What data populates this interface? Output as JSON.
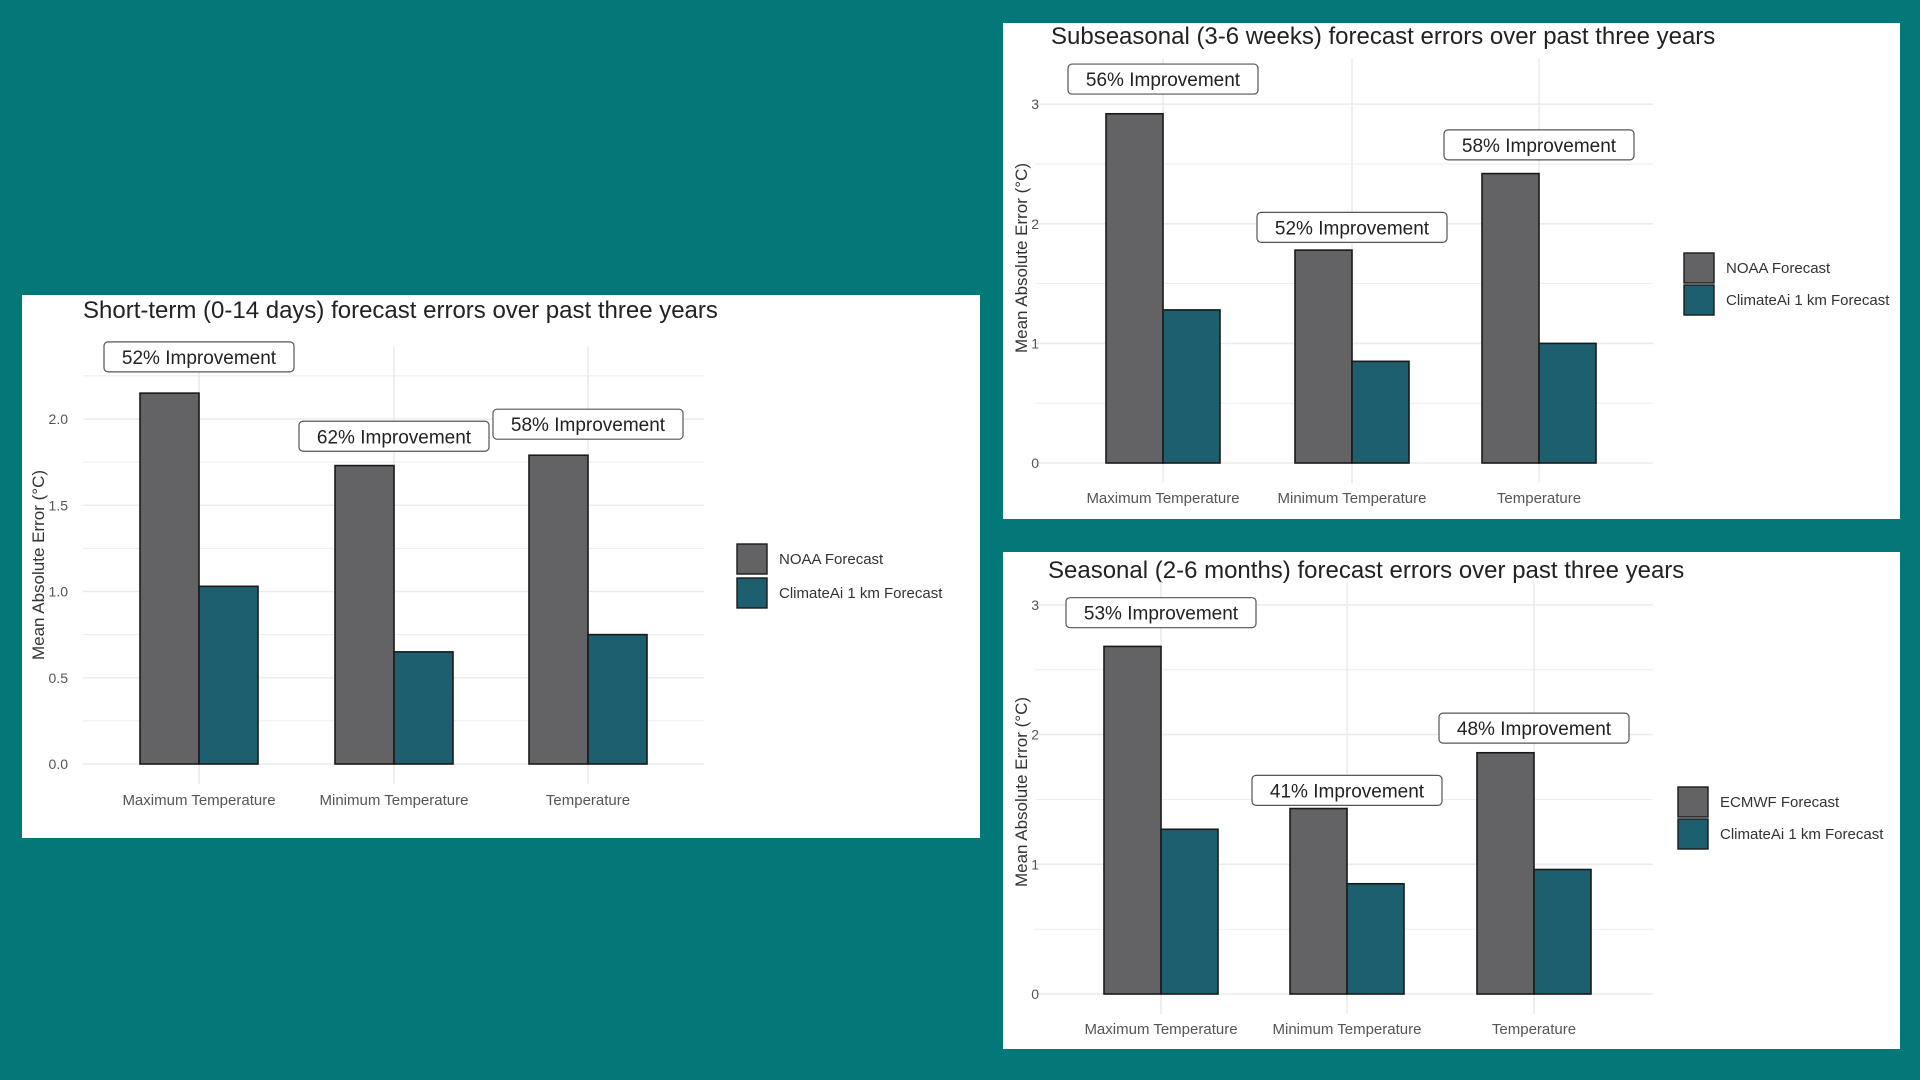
{
  "colors": {
    "background": "#037878",
    "gray_series": "#636366",
    "teal_series": "#1d5f6e",
    "grid": "#ebebeb"
  },
  "chart_data": [
    {
      "type": "bar",
      "title": "Short-term (0-14 days) forecast errors over past three years",
      "ylabel": "Mean Absolute Error (°C)",
      "xlabel": "",
      "categories": [
        "Maximum Temperature",
        "Minimum Temperature",
        "Temperature"
      ],
      "series": [
        {
          "name": "NOAA Forecast",
          "values": [
            2.15,
            1.73,
            1.79
          ]
        },
        {
          "name": "ClimateAi 1 km Forecast",
          "values": [
            1.03,
            0.65,
            0.75
          ]
        }
      ],
      "yticks": [
        0.0,
        0.5,
        1.0,
        1.5,
        2.0
      ],
      "ytick_labels": [
        "0.0",
        "0.5",
        "1.0",
        "1.5",
        "2.0"
      ],
      "ylim": [
        0,
        2.36
      ],
      "grid": true,
      "legend": "right",
      "annotations": [
        {
          "text": "52% Improvement",
          "category": "Maximum Temperature",
          "y": 2.36
        },
        {
          "text": "62% Improvement",
          "category": "Minimum Temperature",
          "y": 1.9
        },
        {
          "text": "58% Improvement",
          "category": "Temperature",
          "y": 1.97
        }
      ]
    },
    {
      "type": "bar",
      "title": "Subseasonal (3-6 weeks) forecast errors over past three years",
      "ylabel": "Mean Absolute Error (°C)",
      "xlabel": "",
      "categories": [
        "Maximum Temperature",
        "Minimum Temperature",
        "Temperature"
      ],
      "series": [
        {
          "name": "NOAA Forecast",
          "values": [
            2.92,
            1.78,
            2.42
          ]
        },
        {
          "name": "ClimateAi 1 km Forecast",
          "values": [
            1.28,
            0.85,
            1.0
          ]
        }
      ],
      "yticks": [
        0,
        1,
        2,
        3
      ],
      "ytick_labels": [
        "0",
        "1",
        "2",
        "3"
      ],
      "ylim": [
        0,
        3.3
      ],
      "grid": true,
      "legend": "right",
      "annotations": [
        {
          "text": "56% Improvement",
          "category": "Maximum Temperature",
          "y": 3.21
        },
        {
          "text": "52% Improvement",
          "category": "Minimum Temperature",
          "y": 1.97
        },
        {
          "text": "58% Improvement",
          "category": "Temperature",
          "y": 2.66
        }
      ]
    },
    {
      "type": "bar",
      "title": "Seasonal (2-6 months) forecast errors over past three years",
      "ylabel": "Mean Absolute Error (°C)",
      "xlabel": "",
      "categories": [
        "Maximum Temperature",
        "Minimum Temperature",
        "Temperature"
      ],
      "series": [
        {
          "name": "ECMWF Forecast",
          "values": [
            2.68,
            1.43,
            1.86
          ]
        },
        {
          "name": "ClimateAi 1 km Forecast",
          "values": [
            1.27,
            0.85,
            0.96
          ]
        }
      ],
      "yticks": [
        0,
        1,
        2,
        3
      ],
      "ytick_labels": [
        "0",
        "1",
        "2",
        "3"
      ],
      "ylim": [
        0,
        3.1
      ],
      "grid": true,
      "legend": "right",
      "annotations": [
        {
          "text": "53% Improvement",
          "category": "Maximum Temperature",
          "y": 2.94
        },
        {
          "text": "41% Improvement",
          "category": "Minimum Temperature",
          "y": 1.57
        },
        {
          "text": "48% Improvement",
          "category": "Temperature",
          "y": 2.05
        }
      ]
    }
  ]
}
